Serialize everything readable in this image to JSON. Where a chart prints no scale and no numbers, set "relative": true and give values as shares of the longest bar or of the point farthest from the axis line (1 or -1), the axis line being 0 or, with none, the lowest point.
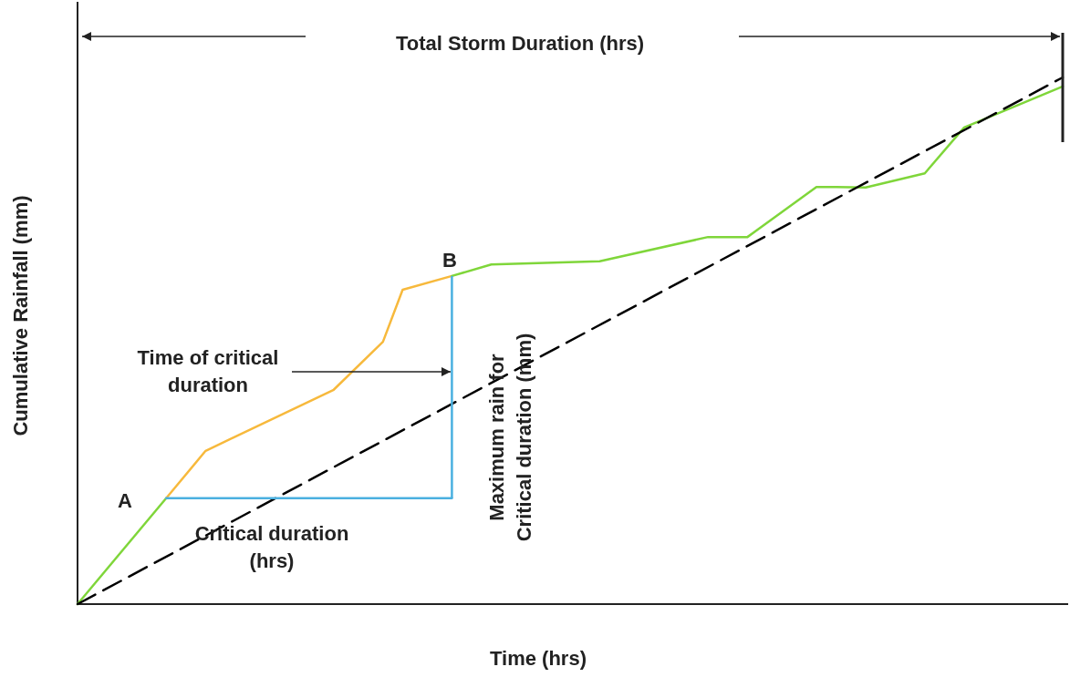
{
  "chart_data": {
    "type": "line",
    "relative": true,
    "xlabel": "Time (hrs)",
    "ylabel": "Cumulative Rainfall (mm)",
    "marker": "none",
    "categories": [
      null,
      null,
      null,
      null,
      null,
      null,
      null,
      null,
      null,
      null,
      null,
      null,
      null,
      null,
      null,
      null,
      null,
      null,
      null,
      null,
      null,
      null,
      null,
      null,
      null,
      null,
      null,
      null,
      null,
      null,
      null,
      null,
      null,
      null,
      null,
      null,
      null,
      null,
      null,
      null,
      null,
      null,
      null,
      null,
      null,
      null,
      null,
      null,
      null,
      null,
      null,
      null,
      null,
      null,
      null,
      null,
      null,
      null,
      null,
      null,
      null,
      null,
      null,
      null,
      null,
      null,
      null,
      null,
      null,
      null,
      null,
      null,
      null,
      null,
      null,
      null,
      null,
      null,
      null,
      null,
      null,
      null,
      null,
      null,
      null,
      null,
      null,
      null,
      null,
      null,
      null,
      null,
      null,
      null,
      null,
      null,
      null,
      null,
      null,
      null,
      null
    ],
    "series": [
      {
        "color": "#7fd63a",
        "values": [
          0,
          null,
          null,
          null,
          null,
          null,
          null,
          null,
          null,
          0.201,
          null,
          null,
          null,
          null,
          null,
          null,
          null,
          null,
          null,
          null,
          null,
          null,
          null,
          null,
          null,
          null,
          null,
          null,
          null,
          null,
          null,
          null,
          null,
          null,
          null,
          null,
          null,
          null,
          null,
          null,
          null,
          null,
          null,
          null,
          null,
          null,
          null,
          null,
          null,
          null,
          null,
          null,
          null,
          null,
          null,
          null,
          null,
          null,
          null,
          null,
          null,
          null,
          null,
          null,
          null,
          null,
          null,
          null,
          null,
          null,
          null,
          null,
          null,
          null,
          null,
          null,
          null,
          null,
          null,
          null,
          null,
          null,
          null,
          null,
          null,
          null,
          null,
          null,
          null,
          null,
          null,
          null,
          null,
          null,
          null,
          null,
          null,
          null,
          null,
          null,
          null
        ]
      },
      {
        "color": "#f7b93c",
        "values": [
          null,
          null,
          null,
          null,
          null,
          null,
          null,
          null,
          null,
          0.201,
          null,
          null,
          null,
          0.291,
          null,
          null,
          null,
          null,
          null,
          null,
          null,
          null,
          null,
          null,
          null,
          null,
          0.407,
          null,
          null,
          null,
          null,
          0.498,
          null,
          0.597,
          null,
          null,
          null,
          null,
          0.623,
          null,
          null,
          null,
          null,
          null,
          null,
          null,
          null,
          null,
          null,
          null,
          null,
          null,
          null,
          null,
          null,
          null,
          null,
          null,
          null,
          null,
          null,
          null,
          null,
          null,
          null,
          null,
          null,
          null,
          null,
          null,
          null,
          null,
          null,
          null,
          null,
          null,
          null,
          null,
          null,
          null,
          null,
          null,
          null,
          null,
          null,
          null,
          null,
          null,
          null,
          null,
          null,
          null,
          null,
          null,
          null,
          null,
          null,
          null,
          null,
          null,
          null
        ]
      },
      {
        "color": "#7fd63a",
        "values": [
          null,
          null,
          null,
          null,
          null,
          null,
          null,
          null,
          null,
          null,
          null,
          null,
          null,
          null,
          null,
          null,
          null,
          null,
          null,
          null,
          null,
          null,
          null,
          null,
          null,
          null,
          null,
          null,
          null,
          null,
          null,
          null,
          null,
          null,
          null,
          null,
          null,
          null,
          0.623,
          null,
          null,
          null,
          0.645,
          null,
          null,
          null,
          null,
          null,
          null,
          null,
          null,
          null,
          null,
          0.651,
          null,
          null,
          null,
          null,
          null,
          null,
          null,
          null,
          null,
          null,
          0.697,
          null,
          null,
          null,
          0.697,
          null,
          null,
          null,
          null,
          null,
          null,
          0.792,
          null,
          0.792,
          null,
          null,
          0.791,
          null,
          null,
          null,
          null,
          null,
          0.818,
          null,
          null,
          null,
          0.905,
          null,
          null,
          null,
          null,
          null,
          null,
          null,
          null,
          null,
          0.983
        ]
      },
      {
        "color": "#000000",
        "line_style": "dashed",
        "values": [
          0,
          null,
          null,
          null,
          null,
          null,
          null,
          null,
          null,
          null,
          null,
          null,
          null,
          null,
          null,
          null,
          null,
          null,
          null,
          null,
          null,
          null,
          null,
          null,
          null,
          null,
          null,
          null,
          null,
          null,
          null,
          null,
          null,
          null,
          null,
          null,
          null,
          null,
          null,
          null,
          null,
          null,
          null,
          null,
          null,
          null,
          null,
          null,
          null,
          null,
          null,
          null,
          null,
          null,
          null,
          null,
          null,
          null,
          null,
          null,
          null,
          null,
          null,
          null,
          null,
          null,
          null,
          null,
          null,
          null,
          null,
          null,
          null,
          null,
          null,
          null,
          null,
          null,
          null,
          null,
          null,
          null,
          null,
          null,
          null,
          null,
          null,
          null,
          null,
          null,
          null,
          null,
          null,
          null,
          null,
          null,
          null,
          null,
          null,
          null,
          1
        ]
      },
      {
        "color": "#4ab0e0",
        "values": [
          null,
          null,
          null,
          null,
          null,
          null,
          null,
          null,
          null,
          0.201,
          null,
          null,
          null,
          null,
          null,
          null,
          null,
          null,
          null,
          null,
          null,
          null,
          null,
          null,
          null,
          null,
          null,
          null,
          null,
          null,
          null,
          null,
          null,
          null,
          null,
          null,
          null,
          null,
          0.201,
          null,
          null,
          null,
          null,
          null,
          null,
          null,
          null,
          null,
          null,
          null,
          null,
          null,
          null,
          null,
          null,
          null,
          null,
          null,
          null,
          null,
          null,
          null,
          null,
          null,
          null,
          null,
          null,
          null,
          null,
          null,
          null,
          null,
          null,
          null,
          null,
          null,
          null,
          null,
          null,
          null,
          null,
          null,
          null,
          null,
          null,
          null,
          null,
          null,
          null,
          null,
          null,
          null,
          null,
          null,
          null,
          null,
          null,
          null,
          null,
          null,
          null
        ]
      }
    ],
    "annotations": [
      "Total Storm Duration (hrs)",
      "Time of critical\nduration",
      "Critical duration\n(hrs)",
      "Maximum rain for\nCritical duration (mm)",
      "A",
      "B"
    ]
  }
}
